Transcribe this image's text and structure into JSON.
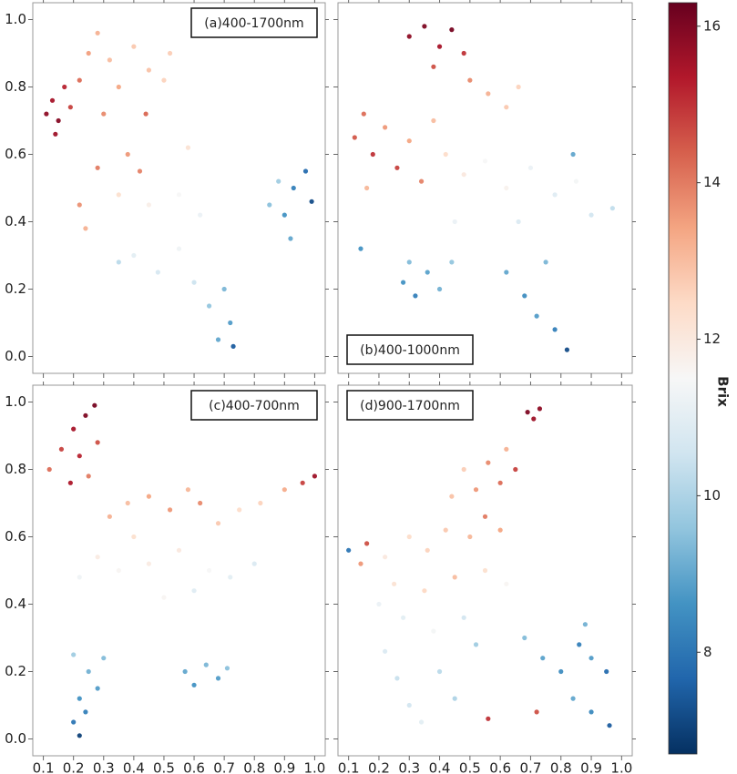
{
  "chart_data": {
    "type": "scatter",
    "xlim": [
      0.065,
      1.035
    ],
    "ylim": [
      -0.05,
      1.05
    ],
    "xticks": [
      0.1,
      0.2,
      0.3,
      0.4,
      0.5,
      0.6,
      0.7,
      0.8,
      0.9,
      {
        "value": 1,
        "label": "1.0"
      }
    ],
    "yticks": [
      {
        "value": 0,
        "label": "0.0"
      },
      0.2,
      0.4,
      0.6,
      0.8,
      {
        "value": 1,
        "label": "1.0"
      }
    ],
    "colorbar": {
      "label": "Brix",
      "lim": [
        6.7,
        16.3
      ],
      "ticks": [
        8,
        10,
        12,
        14,
        16
      ],
      "colormap": [
        "#053061",
        "#2166ac",
        "#4393c3",
        "#92c5de",
        "#d1e5f0",
        "#f7f7f7",
        "#fddbc7",
        "#f4a582",
        "#d6604d",
        "#b2182b",
        "#67001f"
      ]
    },
    "panels": [
      {
        "title": "(a)400-1700nm",
        "title_corner": "top-right",
        "x": [
          0.11,
          0.13,
          0.15,
          0.17,
          0.14,
          0.19,
          0.22,
          0.25,
          0.28,
          0.32,
          0.35,
          0.3,
          0.4,
          0.45,
          0.5,
          0.52,
          0.38,
          0.42,
          0.28,
          0.22,
          0.24,
          0.35,
          0.45,
          0.55,
          0.62,
          0.4,
          0.48,
          0.55,
          0.6,
          0.65,
          0.7,
          0.72,
          0.68,
          0.73,
          0.85,
          0.9,
          0.93,
          0.97,
          0.92,
          0.99,
          0.88,
          0.35,
          0.58,
          0.44
        ],
        "y": [
          0.72,
          0.76,
          0.7,
          0.8,
          0.66,
          0.74,
          0.82,
          0.9,
          0.96,
          0.88,
          0.8,
          0.72,
          0.92,
          0.85,
          0.82,
          0.9,
          0.6,
          0.55,
          0.56,
          0.45,
          0.38,
          0.48,
          0.45,
          0.48,
          0.42,
          0.3,
          0.25,
          0.32,
          0.22,
          0.15,
          0.2,
          0.1,
          0.05,
          0.03,
          0.45,
          0.42,
          0.5,
          0.55,
          0.35,
          0.46,
          0.52,
          0.28,
          0.62,
          0.72
        ],
        "values": [
          15.8,
          15.5,
          15.9,
          15.2,
          15.6,
          14.8,
          14.2,
          13.5,
          13.2,
          13.0,
          13.4,
          13.8,
          12.8,
          12.9,
          12.6,
          12.7,
          13.6,
          13.9,
          14.0,
          13.7,
          13.2,
          12.3,
          11.8,
          11.5,
          11.2,
          11.0,
          10.7,
          11.3,
          10.5,
          9.6,
          9.3,
          8.8,
          9.0,
          7.5,
          9.5,
          8.6,
          8.2,
          7.8,
          9.0,
          7.2,
          9.8,
          10.2,
          12.2,
          14.3
        ]
      },
      {
        "title": "(b)400-1000nm",
        "title_corner": "bottom-left",
        "x": [
          0.3,
          0.35,
          0.4,
          0.44,
          0.48,
          0.38,
          0.5,
          0.56,
          0.62,
          0.66,
          0.15,
          0.12,
          0.18,
          0.22,
          0.26,
          0.3,
          0.34,
          0.16,
          0.38,
          0.42,
          0.48,
          0.55,
          0.62,
          0.7,
          0.78,
          0.85,
          0.9,
          0.97,
          0.66,
          0.45,
          0.28,
          0.32,
          0.36,
          0.4,
          0.44,
          0.3,
          0.62,
          0.68,
          0.72,
          0.78,
          0.82,
          0.75,
          0.84,
          0.14
        ],
        "y": [
          0.95,
          0.98,
          0.92,
          0.97,
          0.9,
          0.86,
          0.82,
          0.78,
          0.74,
          0.8,
          0.72,
          0.65,
          0.6,
          0.68,
          0.56,
          0.64,
          0.52,
          0.5,
          0.7,
          0.6,
          0.54,
          0.58,
          0.5,
          0.56,
          0.48,
          0.52,
          0.42,
          0.44,
          0.4,
          0.4,
          0.22,
          0.18,
          0.25,
          0.2,
          0.28,
          0.28,
          0.25,
          0.18,
          0.12,
          0.08,
          0.02,
          0.28,
          0.6,
          0.32
        ],
        "values": [
          15.8,
          16.0,
          15.5,
          16.1,
          15.0,
          14.6,
          13.8,
          13.2,
          12.8,
          12.6,
          14.2,
          14.5,
          15.0,
          13.6,
          14.8,
          13.4,
          13.9,
          13.1,
          13.0,
          12.4,
          12.0,
          11.5,
          11.7,
          11.2,
          10.9,
          11.4,
          10.6,
          10.3,
          10.8,
          11.2,
          8.6,
          8.2,
          8.9,
          9.2,
          9.6,
          9.4,
          9.0,
          8.5,
          8.8,
          8.2,
          7.2,
          9.3,
          9.0,
          8.6
        ]
      },
      {
        "title": "(c)400-700nm",
        "title_corner": "top-right",
        "x": [
          0.12,
          0.16,
          0.2,
          0.24,
          0.27,
          0.22,
          0.25,
          0.19,
          0.28,
          0.32,
          0.38,
          0.45,
          0.52,
          0.58,
          0.62,
          0.68,
          0.75,
          0.82,
          0.9,
          0.96,
          1.0,
          0.4,
          0.28,
          0.22,
          0.35,
          0.45,
          0.55,
          0.65,
          0.72,
          0.8,
          0.6,
          0.5,
          0.2,
          0.25,
          0.22,
          0.28,
          0.2,
          0.22,
          0.3,
          0.24,
          0.57,
          0.6,
          0.64,
          0.68,
          0.71
        ],
        "y": [
          0.8,
          0.86,
          0.92,
          0.96,
          0.99,
          0.84,
          0.78,
          0.76,
          0.88,
          0.66,
          0.7,
          0.72,
          0.68,
          0.74,
          0.7,
          0.64,
          0.68,
          0.7,
          0.74,
          0.76,
          0.78,
          0.6,
          0.54,
          0.48,
          0.5,
          0.52,
          0.56,
          0.5,
          0.48,
          0.52,
          0.44,
          0.42,
          0.25,
          0.2,
          0.12,
          0.15,
          0.05,
          0.01,
          0.24,
          0.08,
          0.2,
          0.16,
          0.22,
          0.18,
          0.21
        ],
        "values": [
          14.2,
          14.8,
          15.5,
          16.0,
          16.1,
          15.2,
          14.0,
          15.4,
          14.6,
          13.2,
          13.0,
          13.4,
          13.6,
          13.1,
          13.8,
          12.8,
          12.4,
          12.6,
          13.3,
          14.8,
          15.6,
          12.3,
          11.9,
          11.3,
          11.6,
          11.9,
          12.0,
          11.5,
          11.0,
          10.8,
          10.9,
          11.6,
          9.8,
          9.2,
          8.6,
          8.8,
          8.0,
          7.0,
          9.4,
          8.2,
          9.0,
          8.6,
          9.3,
          8.8,
          9.5
        ]
      },
      {
        "title": "(d)900-1700nm",
        "title_corner": "top-left",
        "x": [
          0.69,
          0.71,
          0.73,
          0.62,
          0.65,
          0.6,
          0.56,
          0.52,
          0.48,
          0.44,
          0.55,
          0.6,
          0.5,
          0.42,
          0.36,
          0.3,
          0.22,
          0.16,
          0.14,
          0.1,
          0.25,
          0.35,
          0.45,
          0.55,
          0.62,
          0.2,
          0.28,
          0.38,
          0.48,
          0.22,
          0.26,
          0.3,
          0.34,
          0.4,
          0.45,
          0.52,
          0.68,
          0.74,
          0.8,
          0.86,
          0.9,
          0.95,
          0.84,
          0.9,
          0.96,
          0.88,
          0.56,
          0.72
        ],
        "y": [
          0.97,
          0.95,
          0.98,
          0.86,
          0.8,
          0.76,
          0.82,
          0.74,
          0.8,
          0.72,
          0.66,
          0.62,
          0.6,
          0.62,
          0.56,
          0.6,
          0.54,
          0.58,
          0.52,
          0.56,
          0.46,
          0.44,
          0.48,
          0.5,
          0.46,
          0.4,
          0.36,
          0.32,
          0.36,
          0.26,
          0.18,
          0.1,
          0.05,
          0.2,
          0.12,
          0.28,
          0.3,
          0.24,
          0.2,
          0.28,
          0.24,
          0.2,
          0.12,
          0.08,
          0.04,
          0.34,
          0.06,
          0.08
        ],
        "values": [
          16.0,
          15.6,
          15.8,
          13.2,
          14.8,
          14.2,
          13.8,
          13.6,
          12.7,
          12.9,
          14.0,
          13.4,
          13.1,
          12.8,
          12.6,
          12.4,
          12.0,
          14.6,
          13.6,
          8.0,
          12.2,
          12.5,
          13.0,
          12.3,
          11.6,
          11.2,
          11.0,
          11.4,
          10.6,
          10.8,
          10.4,
          10.6,
          11.0,
          10.2,
          10.0,
          9.8,
          9.4,
          8.9,
          8.5,
          8.2,
          8.8,
          7.8,
          9.0,
          8.4,
          7.5,
          9.2,
          15.0,
          14.6
        ]
      }
    ]
  }
}
